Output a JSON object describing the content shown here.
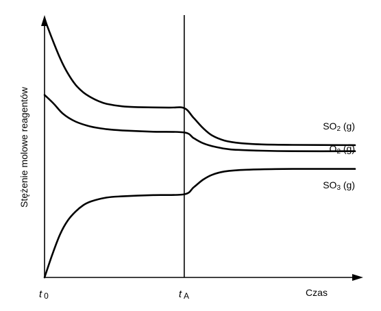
{
  "chart_data": {
    "type": "line",
    "title": "",
    "ylabel": "Stężenie molowe reagentów",
    "xlabel": "Czas",
    "x_ticks": [
      {
        "value": 0,
        "main": "t",
        "sub": "0"
      },
      {
        "value": 4.5,
        "main": "t",
        "sub": "A"
      }
    ],
    "xlim": [
      0,
      10
    ],
    "ylim": [
      0,
      10
    ],
    "vertical_marker_x": 4.5,
    "grid": false,
    "legend": "none",
    "series": [
      {
        "name": "SO₂ (g)",
        "label_main": "SO",
        "label_sub": "2",
        "label_tail": " (g)",
        "color": "#000000",
        "points": [
          [
            0,
            10.2
          ],
          [
            0.25,
            9.4
          ],
          [
            0.5,
            8.65
          ],
          [
            0.75,
            8.05
          ],
          [
            1.0,
            7.6
          ],
          [
            1.25,
            7.3
          ],
          [
            1.5,
            7.1
          ],
          [
            1.75,
            6.95
          ],
          [
            2.0,
            6.85
          ],
          [
            2.5,
            6.75
          ],
          [
            3.0,
            6.72
          ],
          [
            4.0,
            6.7
          ],
          [
            4.5,
            6.68
          ],
          [
            4.8,
            6.3
          ],
          [
            5.1,
            5.9
          ],
          [
            5.4,
            5.6
          ],
          [
            5.8,
            5.4
          ],
          [
            6.3,
            5.3
          ],
          [
            7.0,
            5.25
          ],
          [
            8.0,
            5.23
          ],
          [
            10.0,
            5.22
          ]
        ]
      },
      {
        "name": "O₂ (g)",
        "label_main": "O",
        "label_sub": "2",
        "label_tail": " (g)",
        "color": "#000000",
        "points": [
          [
            0,
            7.2
          ],
          [
            0.3,
            6.85
          ],
          [
            0.6,
            6.45
          ],
          [
            1.0,
            6.15
          ],
          [
            1.5,
            5.95
          ],
          [
            2.0,
            5.85
          ],
          [
            2.5,
            5.8
          ],
          [
            3.5,
            5.75
          ],
          [
            4.5,
            5.72
          ],
          [
            4.8,
            5.5
          ],
          [
            5.1,
            5.3
          ],
          [
            5.5,
            5.15
          ],
          [
            6.0,
            5.05
          ],
          [
            7.0,
            5.0
          ],
          [
            8.0,
            4.98
          ],
          [
            10.0,
            4.98
          ]
        ]
      },
      {
        "name": "SO₃ (g)",
        "label_main": "SO",
        "label_sub": "3",
        "label_tail": " (g)",
        "color": "#000000",
        "points": [
          [
            0,
            0.0
          ],
          [
            0.25,
            0.9
          ],
          [
            0.5,
            1.7
          ],
          [
            0.75,
            2.25
          ],
          [
            1.0,
            2.6
          ],
          [
            1.25,
            2.85
          ],
          [
            1.5,
            3.0
          ],
          [
            2.0,
            3.15
          ],
          [
            2.5,
            3.2
          ],
          [
            3.5,
            3.25
          ],
          [
            4.5,
            3.28
          ],
          [
            4.8,
            3.55
          ],
          [
            5.1,
            3.85
          ],
          [
            5.4,
            4.05
          ],
          [
            5.8,
            4.18
          ],
          [
            6.5,
            4.25
          ],
          [
            8.0,
            4.28
          ],
          [
            10.0,
            4.28
          ]
        ]
      }
    ]
  }
}
